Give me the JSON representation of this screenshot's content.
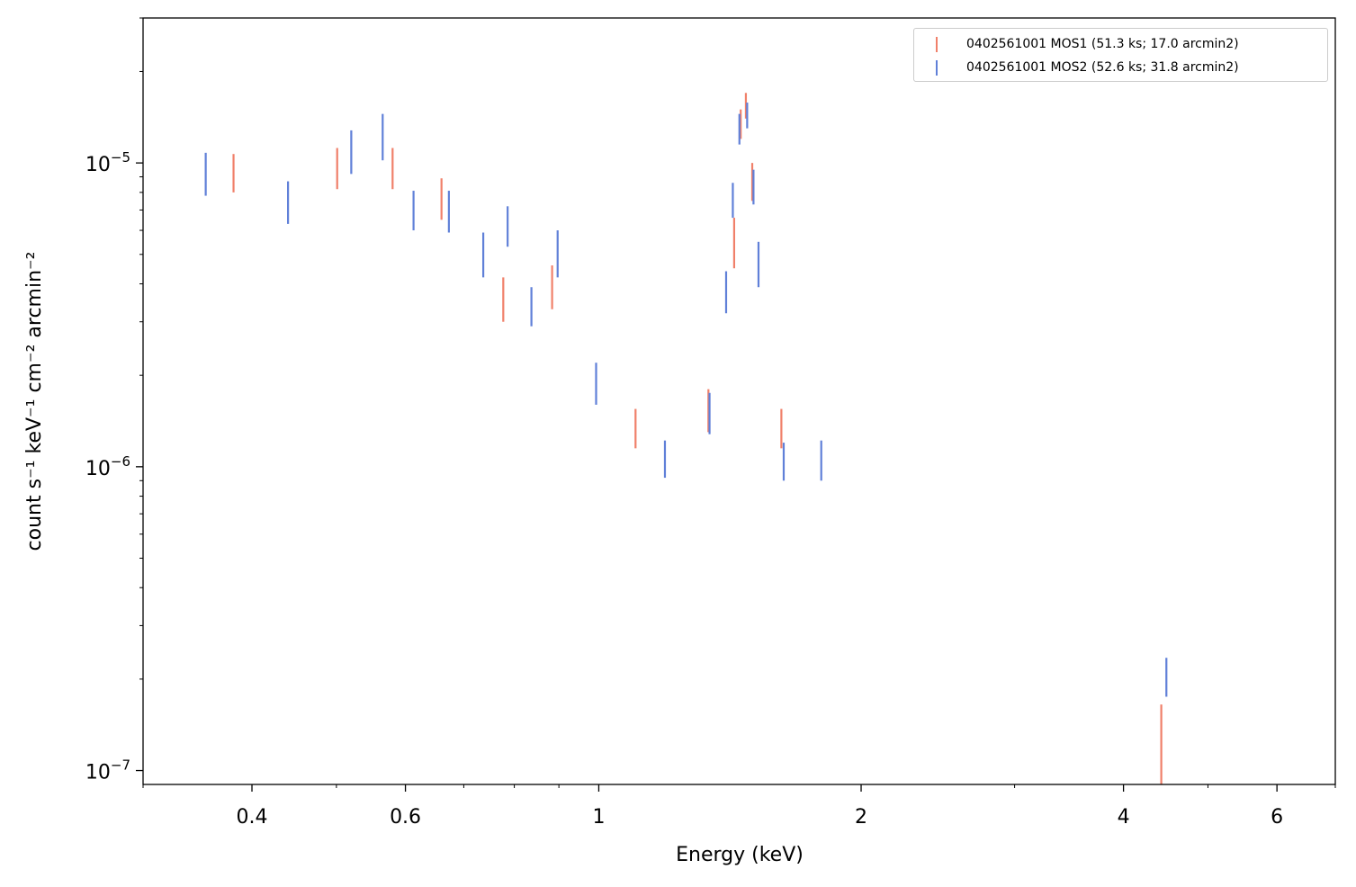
{
  "chart_data": {
    "type": "scatter",
    "title": "",
    "xlabel": "Energy (keV)",
    "ylabel": "count s⁻¹ keV⁻¹ cm⁻² arcmin⁻²",
    "xscale": "log",
    "yscale": "log",
    "xlim": [
      0.3,
      7.0
    ],
    "ylim": [
      9e-08,
      3e-05
    ],
    "x_major_ticks": [
      {
        "v": 0.4,
        "label": "0.4"
      },
      {
        "v": 0.6,
        "label": "0.6"
      },
      {
        "v": 1,
        "label": "1"
      },
      {
        "v": 2,
        "label": "2"
      },
      {
        "v": 4,
        "label": "4"
      },
      {
        "v": 6,
        "label": "6"
      }
    ],
    "x_minor_ticks": [
      0.3,
      0.5,
      0.7,
      0.8,
      0.9,
      3,
      5,
      7
    ],
    "y_major_ticks": [
      {
        "v": 1e-07,
        "label": "10",
        "exp": "−7"
      },
      {
        "v": 1e-06,
        "label": "10",
        "exp": "−6"
      },
      {
        "v": 1e-05,
        "label": "10",
        "exp": "−5"
      }
    ],
    "y_minor_ticks": [
      2e-07,
      3e-07,
      4e-07,
      5e-07,
      6e-07,
      7e-07,
      8e-07,
      9e-07,
      2e-06,
      3e-06,
      4e-06,
      5e-06,
      6e-06,
      7e-06,
      8e-06,
      9e-06,
      2e-05,
      3e-05
    ],
    "legend_position": "upper right",
    "marker": "vertical error bars",
    "series": [
      {
        "name": "0402561001 MOS1 (51.3 ks; 17.0 arcmin2)",
        "color": "#f0806a",
        "points": [
          {
            "x": 0.381,
            "lo": 8e-06,
            "hi": 1.07e-05
          },
          {
            "x": 0.501,
            "lo": 8.2e-06,
            "hi": 1.12e-05
          },
          {
            "x": 0.58,
            "lo": 8.2e-06,
            "hi": 1.12e-05
          },
          {
            "x": 0.66,
            "lo": 6.5e-06,
            "hi": 8.9e-06
          },
          {
            "x": 0.777,
            "lo": 3e-06,
            "hi": 4.2e-06
          },
          {
            "x": 0.884,
            "lo": 3.3e-06,
            "hi": 4.6e-06
          },
          {
            "x": 1.102,
            "lo": 1.15e-06,
            "hi": 1.55e-06
          },
          {
            "x": 1.336,
            "lo": 1.3e-06,
            "hi": 1.8e-06
          },
          {
            "x": 1.43,
            "lo": 4.5e-06,
            "hi": 6.6e-06
          },
          {
            "x": 1.455,
            "lo": 1.2e-05,
            "hi": 1.5e-05
          },
          {
            "x": 1.475,
            "lo": 1.4e-05,
            "hi": 1.7e-05
          },
          {
            "x": 1.5,
            "lo": 7.5e-06,
            "hi": 1e-05
          },
          {
            "x": 1.62,
            "lo": 1.15e-06,
            "hi": 1.55e-06
          },
          {
            "x": 4.42,
            "lo": 9e-08,
            "hi": 1.65e-07
          }
        ]
      },
      {
        "name": "0402561001 MOS2 (52.6 ks; 31.8 arcmin2)",
        "color": "#6080d8",
        "points": [
          {
            "x": 0.354,
            "lo": 7.8e-06,
            "hi": 1.08e-05
          },
          {
            "x": 0.44,
            "lo": 6.3e-06,
            "hi": 8.7e-06
          },
          {
            "x": 0.52,
            "lo": 9.2e-06,
            "hi": 1.28e-05
          },
          {
            "x": 0.565,
            "lo": 1.02e-05,
            "hi": 1.45e-05
          },
          {
            "x": 0.613,
            "lo": 6e-06,
            "hi": 8.1e-06
          },
          {
            "x": 0.673,
            "lo": 5.9e-06,
            "hi": 8.1e-06
          },
          {
            "x": 0.737,
            "lo": 4.2e-06,
            "hi": 5.9e-06
          },
          {
            "x": 0.786,
            "lo": 5.3e-06,
            "hi": 7.2e-06
          },
          {
            "x": 0.837,
            "lo": 2.9e-06,
            "hi": 3.9e-06
          },
          {
            "x": 0.897,
            "lo": 4.2e-06,
            "hi": 6e-06
          },
          {
            "x": 0.993,
            "lo": 1.6e-06,
            "hi": 2.2e-06
          },
          {
            "x": 1.191,
            "lo": 9.2e-07,
            "hi": 1.22e-06
          },
          {
            "x": 1.34,
            "lo": 1.28e-06,
            "hi": 1.75e-06
          },
          {
            "x": 1.4,
            "lo": 3.2e-06,
            "hi": 4.4e-06
          },
          {
            "x": 1.425,
            "lo": 6.6e-06,
            "hi": 8.6e-06
          },
          {
            "x": 1.45,
            "lo": 1.15e-05,
            "hi": 1.45e-05
          },
          {
            "x": 1.48,
            "lo": 1.3e-05,
            "hi": 1.58e-05
          },
          {
            "x": 1.505,
            "lo": 7.3e-06,
            "hi": 9.5e-06
          },
          {
            "x": 1.525,
            "lo": 3.9e-06,
            "hi": 5.5e-06
          },
          {
            "x": 1.63,
            "lo": 9e-07,
            "hi": 1.2e-06
          },
          {
            "x": 1.8,
            "lo": 9e-07,
            "hi": 1.22e-06
          },
          {
            "x": 4.48,
            "lo": 1.75e-07,
            "hi": 2.35e-07
          }
        ]
      }
    ]
  }
}
